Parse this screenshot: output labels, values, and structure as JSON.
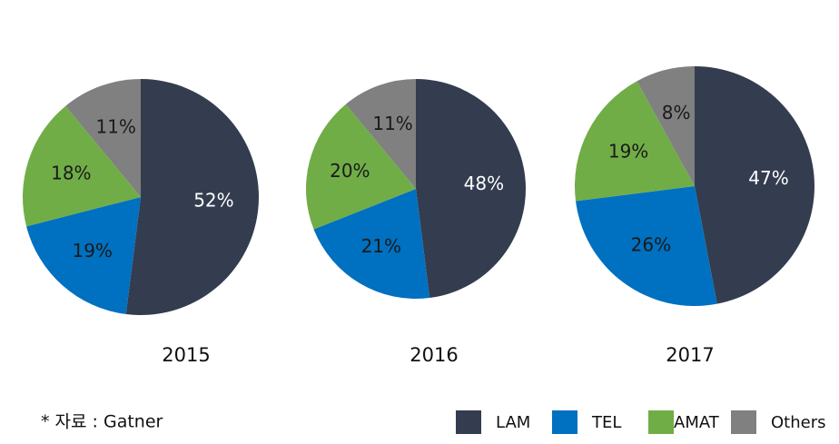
{
  "chart_data": [
    {
      "type": "pie",
      "title": "2015",
      "categories": [
        "LAM",
        "TEL",
        "AMAT",
        "Others"
      ],
      "values": [
        52,
        19,
        18,
        11
      ],
      "value_labels": [
        "52%",
        "19%",
        "18%",
        "11%"
      ],
      "colors": [
        "#333d4f",
        "#0070c0",
        "#70ad47",
        "#808080"
      ]
    },
    {
      "type": "pie",
      "title": "2016",
      "categories": [
        "LAM",
        "TEL",
        "AMAT",
        "Others"
      ],
      "values": [
        48,
        21,
        20,
        11
      ],
      "value_labels": [
        "48%",
        "21%",
        "20%",
        "11%"
      ],
      "colors": [
        "#333d4f",
        "#0070c0",
        "#70ad47",
        "#808080"
      ]
    },
    {
      "type": "pie",
      "title": "2017",
      "categories": [
        "LAM",
        "TEL",
        "AMAT",
        "Others"
      ],
      "values": [
        47,
        26,
        19,
        8
      ],
      "value_labels": [
        "47%",
        "26%",
        "19%",
        "8%"
      ],
      "colors": [
        "#333d4f",
        "#0070c0",
        "#70ad47",
        "#808080"
      ]
    }
  ],
  "source": "* 자료 : Gatner"
}
